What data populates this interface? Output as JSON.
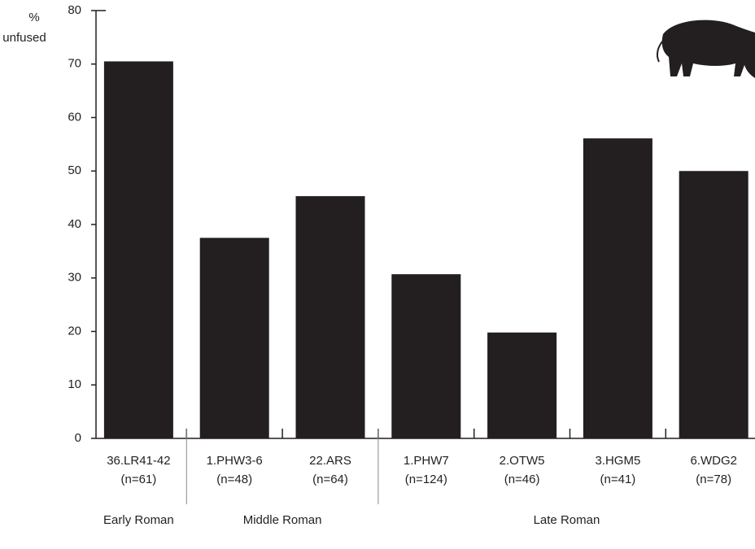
{
  "chart_data": {
    "type": "bar",
    "y_label": [
      "%",
      "unfused"
    ],
    "categories": [
      "36.LR41-42",
      "1.PHW3-6",
      "22.ARS",
      "1.PHW7",
      "2.OTW5",
      "3.HGM5",
      "6.WDG2"
    ],
    "sample_sizes": [
      "(n=61)",
      "(n=48)",
      "(n=64)",
      "(n=124)",
      "(n=46)",
      "(n=41)",
      "(n=78)"
    ],
    "groups": [
      {
        "label": "Early Roman",
        "span": 1
      },
      {
        "label": "Middle Roman",
        "span": 2
      },
      {
        "label": "Late Roman",
        "span": 4
      }
    ],
    "values": [
      70.5,
      37.5,
      45.3,
      30.7,
      19.8,
      56.1,
      50.0
    ],
    "color": "#231f20",
    "ylim": [
      0,
      80
    ],
    "yticks": [
      0,
      10,
      20,
      30,
      40,
      50,
      60,
      70,
      80
    ],
    "grid": false
  }
}
